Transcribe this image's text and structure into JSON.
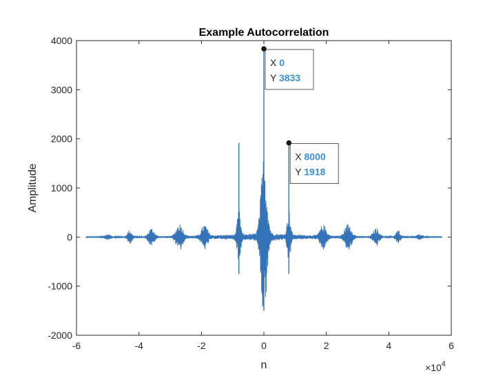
{
  "chart_data": {
    "type": "line",
    "title": "Example Autocorrelation",
    "xlabel": "n",
    "ylabel": "Amplitude",
    "x_exponent_label": "×10",
    "x_exponent_power": "4",
    "x_multiplier": 10000,
    "xlim": [
      -60000,
      60000
    ],
    "ylim": [
      -2000,
      4000
    ],
    "x_ticks": [
      -6,
      -4,
      -2,
      0,
      2,
      4,
      6
    ],
    "y_ticks": [
      -2000,
      -1000,
      0,
      1000,
      2000,
      3000,
      4000
    ],
    "x_tick_labels": [
      "-6",
      "-4",
      "-2",
      "0",
      "2",
      "4",
      "6"
    ],
    "y_tick_labels": [
      "-2000",
      "-1000",
      "0",
      "1000",
      "2000",
      "3000",
      "4000"
    ],
    "grid": false,
    "series_color": "#3473b8",
    "signal_range": [
      -57000,
      57000
    ],
    "peaks": [
      {
        "x": 0,
        "max": 3833,
        "min": -1500
      },
      {
        "x": 8000,
        "max": 1918,
        "min": -750
      },
      {
        "x": -8000,
        "max": 1918,
        "min": -750
      }
    ],
    "datatips": [
      {
        "x_key": "X",
        "x_value": "0",
        "y_key": "Y",
        "y_value": "3833",
        "x": 0,
        "y": 3833
      },
      {
        "x_key": "X",
        "x_value": "8000",
        "y_key": "Y",
        "y_value": "1918",
        "x": 8000,
        "y": 1918
      }
    ],
    "datatip_value_color": "#3a8fd9"
  }
}
